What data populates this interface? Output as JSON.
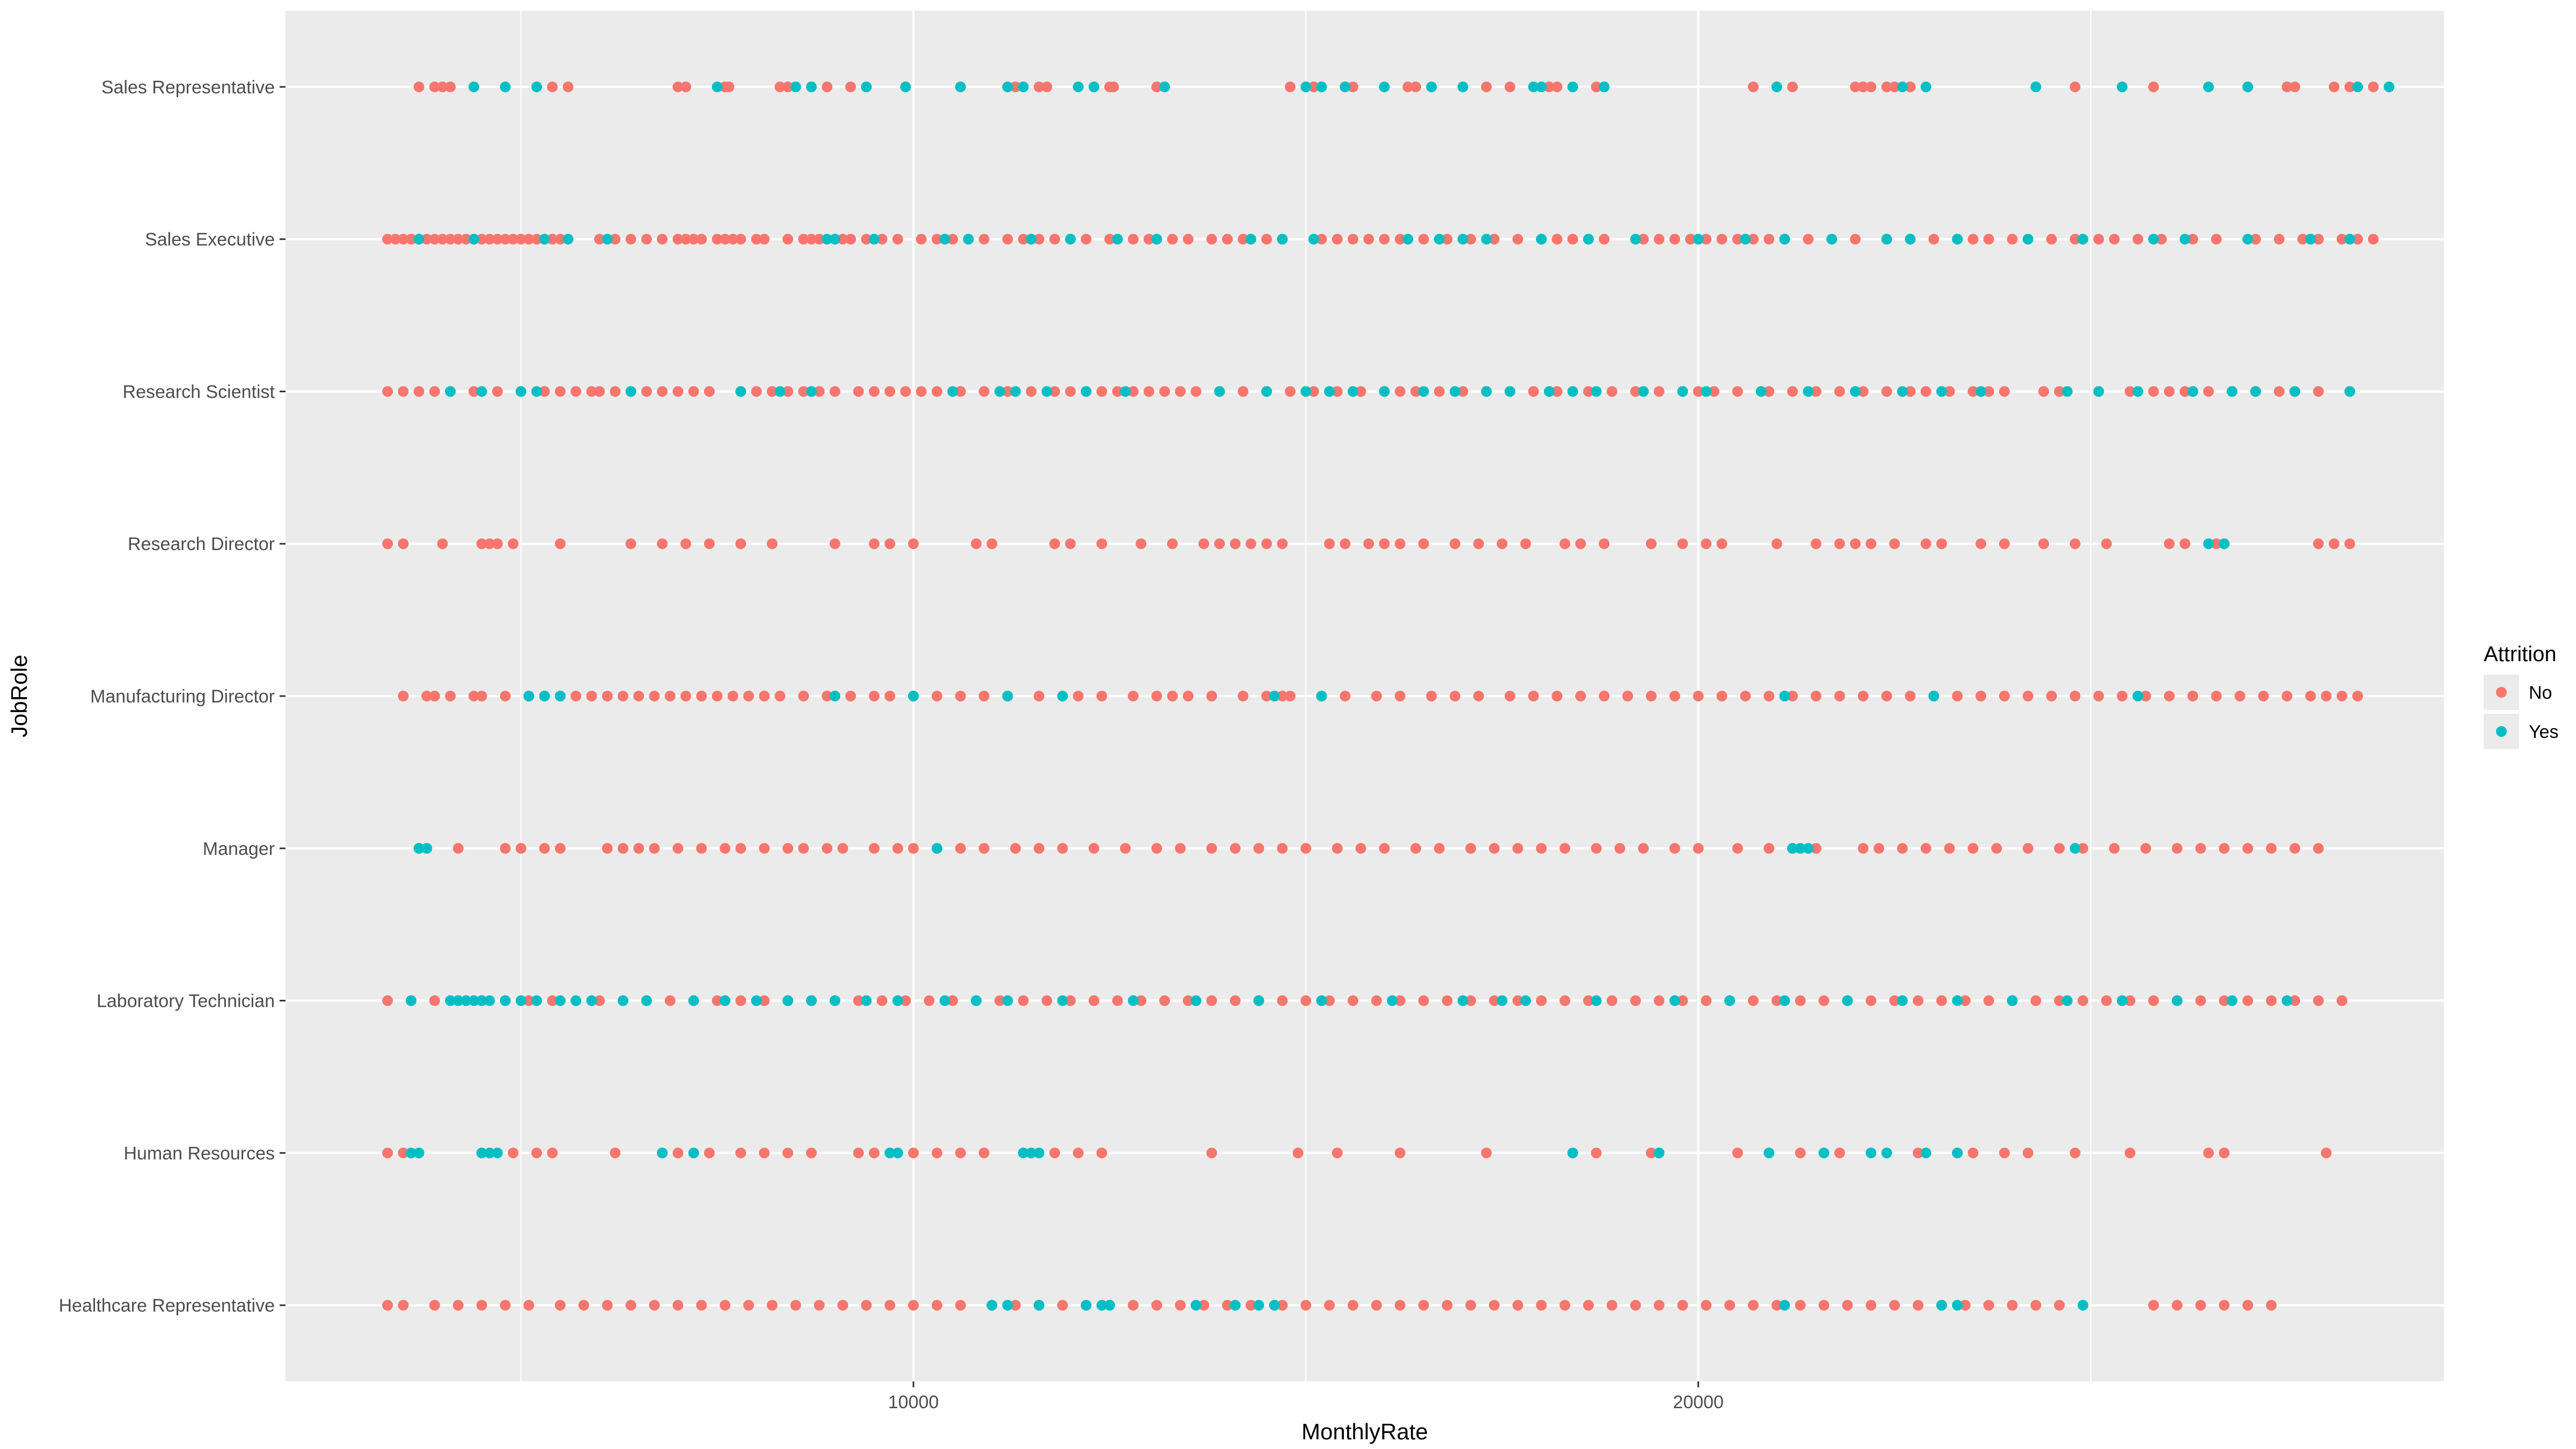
{
  "chart_data": {
    "type": "scatter",
    "title": "",
    "xlabel": "MonthlyRate",
    "ylabel": "JobRole",
    "xlim": [
      2000,
      29500
    ],
    "x_ticks": [
      10000,
      20000
    ],
    "x_tick_labels": [
      "10000",
      "20000"
    ],
    "x_minor_ticks": [
      5000,
      15000,
      25000
    ],
    "categories": [
      "Healthcare Representative",
      "Human Resources",
      "Laboratory Technician",
      "Manager",
      "Manufacturing Director",
      "Research Director",
      "Research Scientist",
      "Sales Executive",
      "Sales Representative"
    ],
    "grid": true,
    "legend": {
      "title": "Attrition",
      "position": "right",
      "entries": [
        "No",
        "Yes"
      ]
    },
    "colors": {
      "No": "#F8766D",
      "Yes": "#00BFC4",
      "panel": "#EBEBEB",
      "grid": "#FFFFFF"
    },
    "series": [
      {
        "name": "No",
        "points": {
          "Sales Representative": [
            3700,
            3900,
            4000,
            4100,
            5400,
            5600,
            7000,
            7100,
            7600,
            7650,
            8300,
            8400,
            8900,
            9200,
            9400,
            11300,
            11600,
            11700,
            12300,
            12500,
            12550,
            13100,
            13200,
            14800,
            15100,
            15600,
            16300,
            16400,
            17300,
            17600,
            18100,
            18200,
            18700,
            18800,
            20700,
            21200,
            22000,
            22100,
            22200,
            22400,
            22500,
            22700,
            24800,
            25800,
            27500,
            27600,
            28100,
            28300,
            28600
          ],
          "Sales Executive": [
            3300,
            3400,
            3500,
            3600,
            3700,
            3800,
            3900,
            4000,
            4100,
            4200,
            4300,
            4400,
            4500,
            4600,
            4700,
            4800,
            4900,
            5000,
            5100,
            5200,
            5300,
            5400,
            5500,
            6000,
            6200,
            6400,
            6600,
            6800,
            7000,
            7100,
            7200,
            7300,
            7500,
            7600,
            7700,
            7800,
            8000,
            8100,
            8400,
            8600,
            8700,
            8800,
            9000,
            9100,
            9200,
            9400,
            9600,
            9800,
            10100,
            10300,
            10500,
            10700,
            10900,
            11200,
            11400,
            11600,
            11800,
            12000,
            12200,
            12500,
            12800,
            13000,
            13100,
            13300,
            13500,
            13800,
            14000,
            14200,
            14500,
            14700,
            15200,
            15400,
            15600,
            15800,
            16000,
            16200,
            16500,
            16800,
            17100,
            17400,
            17700,
            18000,
            18200,
            18400,
            18600,
            18800,
            19300,
            19500,
            19700,
            19900,
            20100,
            20300,
            20500,
            20700,
            20900,
            21100,
            21400,
            21700,
            22000,
            22400,
            22700,
            23000,
            23300,
            23500,
            23700,
            24000,
            24200,
            24500,
            24800,
            25100,
            25300,
            25600,
            25900,
            26300,
            26600,
            27100,
            27400,
            27700,
            27900,
            28200,
            28400,
            28600
          ],
          "Research Scientist": [
            3300,
            3500,
            3700,
            3900,
            4100,
            4400,
            4700,
            5000,
            5300,
            5500,
            5700,
            5900,
            6000,
            6200,
            6400,
            6600,
            6800,
            7000,
            7200,
            7400,
            7800,
            8000,
            8200,
            8400,
            8600,
            8800,
            9000,
            9300,
            9500,
            9700,
            9900,
            10100,
            10300,
            10600,
            10900,
            11200,
            11500,
            11800,
            12000,
            12200,
            12400,
            12600,
            12800,
            13000,
            13200,
            13400,
            13600,
            13900,
            14200,
            14500,
            14800,
            15100,
            15400,
            15700,
            16000,
            16200,
            16400,
            16700,
            17000,
            17300,
            17600,
            17900,
            18200,
            18600,
            18900,
            19200,
            19500,
            19800,
            20000,
            20200,
            20500,
            20900,
            21200,
            21500,
            21800,
            22100,
            22400,
            22700,
            22900,
            23200,
            23500,
            23700,
            23900,
            24400,
            24600,
            25100,
            25500,
            25800,
            26000,
            26200,
            26500,
            26800,
            27100,
            27400,
            27600,
            27900,
            28300
          ],
          "Research Director": [
            3300,
            3500,
            4000,
            4500,
            4600,
            4700,
            4900,
            5500,
            6400,
            6800,
            7100,
            7400,
            7800,
            8200,
            9000,
            9500,
            9700,
            10000,
            10800,
            11000,
            11800,
            12000,
            12400,
            12900,
            13300,
            13700,
            13900,
            14100,
            14300,
            14500,
            14700,
            15300,
            15500,
            15800,
            16000,
            16200,
            16500,
            16900,
            17200,
            17500,
            17800,
            18300,
            18500,
            18800,
            19400,
            19800,
            20100,
            20300,
            21000,
            21500,
            21800,
            22000,
            22200,
            22500,
            22900,
            23100,
            23600,
            23900,
            24400,
            24800,
            25200,
            26000,
            26200,
            26600,
            27900,
            28100,
            28300
          ],
          "Manufacturing Director": [
            3500,
            3800,
            3900,
            4100,
            4400,
            4500,
            4800,
            5100,
            5300,
            5500,
            5700,
            5900,
            6100,
            6300,
            6500,
            6700,
            6900,
            7100,
            7300,
            7500,
            7700,
            7900,
            8100,
            8300,
            8600,
            8900,
            9200,
            9500,
            9700,
            10000,
            10300,
            10600,
            10900,
            11200,
            11600,
            12100,
            12400,
            12800,
            13100,
            13300,
            13500,
            13800,
            14200,
            14500,
            14700,
            14800,
            15200,
            15500,
            15900,
            16200,
            16600,
            16900,
            17200,
            17600,
            17900,
            18200,
            18500,
            18800,
            19100,
            19400,
            19700,
            20000,
            20300,
            20600,
            20900,
            21200,
            21500,
            21800,
            22100,
            22400,
            22700,
            23000,
            23300,
            23600,
            23900,
            24200,
            24500,
            24800,
            25100,
            25400,
            25700,
            26000,
            26300,
            26600,
            26900,
            27200,
            27500,
            27800,
            28000,
            28200,
            28400
          ],
          "Manager": [
            3700,
            4200,
            4800,
            5000,
            5300,
            5500,
            6100,
            6300,
            6500,
            6700,
            7000,
            7300,
            7600,
            7800,
            8100,
            8400,
            8600,
            8900,
            9100,
            9500,
            9800,
            10000,
            10300,
            10600,
            10900,
            11300,
            11600,
            11900,
            12300,
            12700,
            13100,
            13400,
            13800,
            14100,
            14400,
            14700,
            15000,
            15400,
            15700,
            16000,
            16400,
            16700,
            17100,
            17400,
            17700,
            18000,
            18300,
            18700,
            19000,
            19300,
            19700,
            20000,
            20500,
            20900,
            21200,
            21500,
            22100,
            22300,
            22600,
            22900,
            23200,
            23500,
            23800,
            24200,
            24600,
            24900,
            25300,
            25700,
            26100,
            26400,
            26700,
            27000,
            27300,
            27600,
            27900
          ],
          "Laboratory Technician": [
            3300,
            3600,
            3900,
            4200,
            4500,
            4800,
            5100,
            5400,
            5700,
            6000,
            6300,
            6600,
            6900,
            7200,
            7500,
            7800,
            8100,
            8400,
            8700,
            9000,
            9300,
            9600,
            9900,
            10200,
            10500,
            10800,
            11100,
            11400,
            11700,
            12000,
            12300,
            12600,
            12900,
            13200,
            13500,
            13800,
            14100,
            14400,
            14700,
            15000,
            15300,
            15600,
            15900,
            16200,
            16500,
            16800,
            17100,
            17400,
            17700,
            18000,
            18300,
            18600,
            18900,
            19200,
            19500,
            19800,
            20100,
            20400,
            20700,
            21000,
            21300,
            21600,
            21900,
            22200,
            22500,
            22800,
            23100,
            23400,
            23700,
            24000,
            24300,
            24600,
            24900,
            25200,
            25500,
            25800,
            26100,
            26400,
            26700,
            27000,
            27300,
            27600,
            27900,
            28200
          ],
          "Human Resources": [
            3300,
            3500,
            4900,
            5200,
            5400,
            6200,
            6800,
            7000,
            7400,
            7800,
            8100,
            8400,
            8700,
            9300,
            9500,
            10000,
            10300,
            10600,
            10900,
            11500,
            11800,
            12100,
            12400,
            13800,
            14900,
            15400,
            16200,
            17300,
            18700,
            19400,
            20500,
            21300,
            21800,
            22800,
            23300,
            23500,
            23900,
            24200,
            24800,
            25500,
            26500,
            26700,
            28000
          ],
          "Healthcare Representative": [
            3300,
            3500,
            3900,
            4200,
            4500,
            4800,
            5100,
            5500,
            5800,
            6100,
            6400,
            6700,
            7000,
            7300,
            7600,
            7900,
            8200,
            8500,
            8800,
            9100,
            9400,
            9700,
            10000,
            10300,
            10600,
            11000,
            11300,
            11600,
            11900,
            12200,
            12500,
            12800,
            13100,
            13400,
            13700,
            14000,
            14300,
            14700,
            15000,
            15300,
            15600,
            15900,
            16200,
            16500,
            16800,
            17100,
            17400,
            17700,
            18000,
            18300,
            18600,
            18900,
            19200,
            19500,
            19800,
            20100,
            20400,
            20700,
            21000,
            21300,
            21600,
            21900,
            22200,
            22500,
            22800,
            23100,
            23400,
            23700,
            24000,
            24300,
            24600,
            25800,
            26100,
            26400,
            26700,
            27000,
            27300
          ]
        }
      },
      {
        "name": "Yes",
        "points": {
          "Sales Representative": [
            4400,
            4800,
            5200,
            7500,
            8500,
            8700,
            9400,
            9900,
            10600,
            11200,
            11400,
            12100,
            12300,
            13200,
            15000,
            15200,
            15500,
            16000,
            16600,
            17000,
            17900,
            18000,
            18400,
            18800,
            21000,
            22600,
            22900,
            24300,
            25400,
            26500,
            27000,
            28400,
            28800
          ],
          "Sales Executive": [
            3700,
            4400,
            5300,
            5600,
            6100,
            8900,
            9000,
            9500,
            10400,
            10700,
            11500,
            12000,
            12600,
            13100,
            14300,
            14700,
            15100,
            16300,
            16700,
            17000,
            17300,
            18000,
            18600,
            19200,
            20000,
            20600,
            21100,
            21700,
            22400,
            22700,
            23300,
            24200,
            24900,
            25800,
            26200,
            27000,
            27800,
            28300
          ],
          "Research Scientist": [
            4100,
            4500,
            5000,
            5200,
            6400,
            7800,
            8300,
            8700,
            10500,
            11100,
            11300,
            11700,
            12200,
            12700,
            13900,
            14500,
            15000,
            15300,
            15600,
            16000,
            16500,
            16900,
            17300,
            17600,
            18100,
            18400,
            18700,
            19300,
            19800,
            20100,
            20800,
            21400,
            22000,
            22600,
            23100,
            23600,
            24700,
            25100,
            25600,
            26300,
            26800,
            27100,
            27600,
            28300
          ],
          "Research Director": [
            26500,
            26700
          ],
          "Manufacturing Director": [
            5100,
            5300,
            5500,
            9000,
            10000,
            11200,
            11900,
            14600,
            15200,
            21100,
            23000,
            25600
          ],
          "Manager": [
            3700,
            3800,
            10300,
            21200,
            21300,
            21400,
            24800
          ],
          "Laboratory Technician": [
            3600,
            4100,
            4200,
            4300,
            4400,
            4500,
            4600,
            4800,
            5000,
            5200,
            5500,
            5700,
            5900,
            6300,
            6600,
            7200,
            7600,
            8000,
            8400,
            8700,
            9000,
            9400,
            9800,
            10400,
            10800,
            11200,
            11900,
            12800,
            13600,
            14400,
            15200,
            16100,
            17000,
            17500,
            17800,
            18700,
            19700,
            20400,
            21100,
            21900,
            22600,
            23300,
            24000,
            24700,
            25400,
            26100,
            26800,
            27500
          ],
          "Human Resources": [
            3600,
            3700,
            4500,
            4600,
            4700,
            6800,
            7200,
            9700,
            9800,
            11400,
            11500,
            11600,
            18400,
            19500,
            20900,
            21600,
            22200,
            22400,
            22900,
            23300
          ],
          "Healthcare Representative": [
            11000,
            11200,
            11600,
            12200,
            12400,
            12500,
            13600,
            14100,
            14400,
            14600,
            21100,
            23100,
            23300,
            24900
          ]
        }
      }
    ]
  }
}
